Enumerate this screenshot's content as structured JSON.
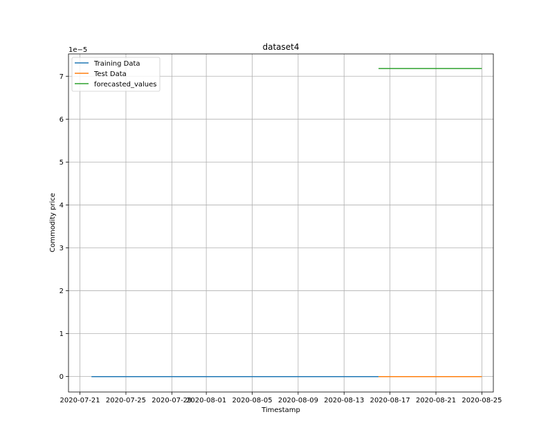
{
  "chart_data": {
    "type": "line",
    "title": "dataset4",
    "xlabel": "Timestamp",
    "ylabel": "Commodity price",
    "y_offset_text": "1e−5",
    "y_multiplier": 1e-05,
    "xlim": [
      "2020-07-20",
      "2020-08-26"
    ],
    "ylim": [
      -0.36,
      7.52
    ],
    "grid": true,
    "legend_position": "top-left",
    "x_ticks": [
      "2020-07-21",
      "2020-07-25",
      "2020-07-29",
      "2020-08-01",
      "2020-08-05",
      "2020-08-09",
      "2020-08-13",
      "2020-08-17",
      "2020-08-21",
      "2020-08-25"
    ],
    "y_ticks": [
      0,
      1,
      2,
      3,
      4,
      5,
      6,
      7
    ],
    "series": [
      {
        "name": "Training Data",
        "color": "#1f77b4",
        "x": [
          "2020-07-22",
          "2020-08-16"
        ],
        "y": [
          0,
          0
        ]
      },
      {
        "name": "Test Data",
        "color": "#ff7f0e",
        "x": [
          "2020-08-16",
          "2020-08-25"
        ],
        "y": [
          0,
          0
        ]
      },
      {
        "name": "forecasted_values",
        "color": "#2ca02c",
        "x": [
          "2020-08-16",
          "2020-08-25"
        ],
        "y": [
          7.18,
          7.18
        ]
      }
    ]
  }
}
